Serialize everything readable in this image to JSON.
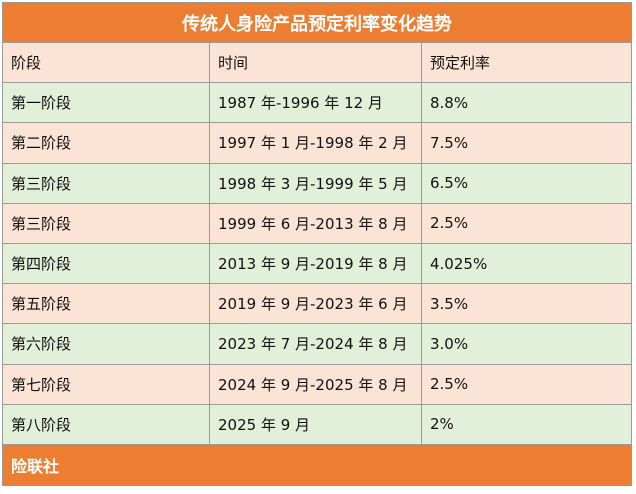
{
  "table": {
    "title": "传统人身险产品预定利率变化趋势",
    "headers": [
      "阶段",
      "时间",
      "预定利率"
    ],
    "rows": [
      [
        "第一阶段",
        "1987 年-1996 年 12 月",
        "8.8%"
      ],
      [
        "第二阶段",
        "1997 年 1 月-1998 年 2 月",
        "7.5%"
      ],
      [
        "第三阶段",
        "1998 年 3 月-1999 年 5 月",
        "6.5%"
      ],
      [
        "第三阶段",
        "1999 年 6 月-2013 年 8 月",
        "2.5%"
      ],
      [
        "第四阶段",
        "2013 年 9 月-2019 年 8 月",
        "4.025%"
      ],
      [
        "第五阶段",
        "2019 年 9 月-2023 年 6 月",
        "3.5%"
      ],
      [
        "第六阶段",
        "2023 年 7 月-2024 年 8 月",
        "3.0%"
      ],
      [
        "第七阶段",
        "2024 年 9 月-2025 年 8 月",
        "2.5%"
      ],
      [
        "第八阶段",
        "2025 年 9 月",
        "2%"
      ]
    ],
    "footer": "险联社"
  },
  "watermark": "险联社",
  "colors": {
    "header_bar": "#ed7d31",
    "row_peach": "#fbe4d5",
    "row_green": "#e2efd9"
  }
}
